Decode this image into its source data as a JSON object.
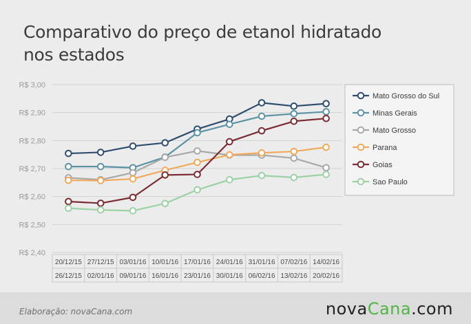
{
  "title": {
    "line1": "Comparativo do preço de etanol hidratado",
    "line2": "nos estados"
  },
  "footer": {
    "credit": "Elaboração: novaCana.com",
    "logo_pre": "nova",
    "logo_hl": "Cana",
    "logo_post": ".com"
  },
  "chart_data": {
    "type": "line",
    "title": "Comparativo do preço de etanol hidratado nos estados",
    "xlabel": "",
    "ylabel": "",
    "ylim": [
      2.4,
      3.0
    ],
    "yticks": [
      "R$ 3,00",
      "R$ 2,90",
      "R$ 2,80",
      "R$ 2,70",
      "R$ 2,60",
      "R$ 2,50",
      "R$ 2,40"
    ],
    "grid": true,
    "legend_position": "right",
    "categories": [
      [
        "20/12/15",
        "26/12/15"
      ],
      [
        "27/12/15",
        "02/01/16"
      ],
      [
        "03/01/16",
        "09/01/16"
      ],
      [
        "10/01/16",
        "16/01/16"
      ],
      [
        "17/01/16",
        "23/01/16"
      ],
      [
        "24/01/16",
        "30/01/16"
      ],
      [
        "31/01/16",
        "06/02/16"
      ],
      [
        "07/02/16",
        "13/02/16"
      ],
      [
        "14/02/16",
        "20/02/16"
      ]
    ],
    "series": [
      {
        "name": "Mato Grosso do Sul",
        "color": "#2e4d6e",
        "values": [
          2.754,
          2.758,
          2.78,
          2.792,
          2.841,
          2.877,
          2.935,
          2.923,
          2.932
        ]
      },
      {
        "name": "Minas Gerais",
        "color": "#5b93a5",
        "values": [
          2.707,
          2.707,
          2.703,
          2.741,
          2.828,
          2.858,
          2.887,
          2.896,
          2.903
        ]
      },
      {
        "name": "Mato Grosso",
        "color": "#a8a8a8",
        "values": [
          2.667,
          2.66,
          2.685,
          2.74,
          2.763,
          2.748,
          2.748,
          2.737,
          2.703
        ]
      },
      {
        "name": "Parana",
        "color": "#f0a95a",
        "values": [
          2.658,
          2.657,
          2.663,
          2.694,
          2.722,
          2.749,
          2.756,
          2.761,
          2.776
        ]
      },
      {
        "name": "Goias",
        "color": "#7b2c33",
        "values": [
          2.582,
          2.576,
          2.597,
          2.677,
          2.679,
          2.796,
          2.835,
          2.869,
          2.879
        ]
      },
      {
        "name": "Sao Paulo",
        "color": "#9cd1a6",
        "values": [
          2.558,
          2.552,
          2.549,
          2.575,
          2.624,
          2.66,
          2.675,
          2.668,
          2.679
        ]
      }
    ]
  }
}
